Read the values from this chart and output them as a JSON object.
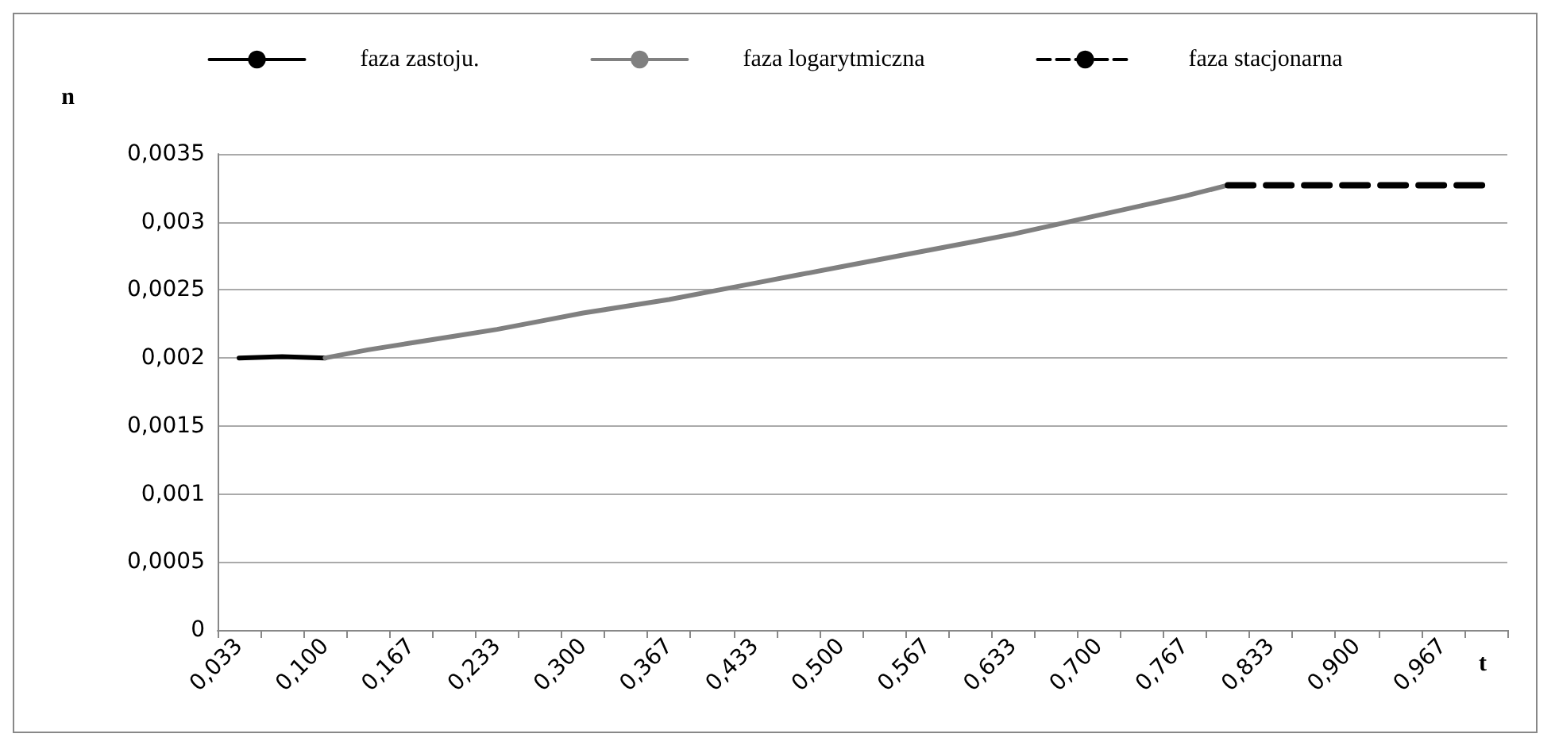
{
  "chart_data": {
    "type": "line",
    "xlabel": "t",
    "ylabel": "n",
    "categories": [
      "0,033",
      null,
      "0,100",
      null,
      "0,167",
      null,
      "0,233",
      null,
      "0,300",
      null,
      "0,367",
      null,
      "0,433",
      null,
      "0,500",
      null,
      "0,567",
      null,
      "0,633",
      null,
      "0,700",
      null,
      "0,767",
      null,
      "0,833",
      null,
      "0,900",
      null,
      "0,967",
      null
    ],
    "series": [
      {
        "name": "faza zastoju.",
        "color": "#000000",
        "line_style": "solid",
        "values": [
          0.002,
          0.00201,
          0.002,
          null,
          null,
          null,
          null,
          null,
          null,
          null,
          null,
          null,
          null,
          null,
          null,
          null,
          null,
          null,
          null,
          null,
          null,
          null,
          null,
          null,
          null,
          null,
          null,
          null,
          null,
          null
        ]
      },
      {
        "name": "faza logarytmiczna",
        "color": "#808080",
        "line_style": "solid",
        "values": [
          null,
          null,
          0.002,
          0.00206,
          0.00211,
          0.00216,
          0.00221,
          0.00227,
          0.00233,
          0.00238,
          0.00243,
          0.00249,
          0.00255,
          0.00261,
          0.00267,
          0.00273,
          0.00279,
          0.00285,
          0.00291,
          0.00298,
          0.00305,
          0.00312,
          0.00319,
          0.00327,
          null,
          null,
          null,
          null,
          null,
          null
        ]
      },
      {
        "name": "faza stacjonarna",
        "color": "#000000",
        "line_style": "dashed",
        "values": [
          null,
          null,
          null,
          null,
          null,
          null,
          null,
          null,
          null,
          null,
          null,
          null,
          null,
          null,
          null,
          null,
          null,
          null,
          null,
          null,
          null,
          null,
          null,
          0.00327,
          0.00327,
          0.00327,
          0.00327,
          0.00327,
          0.00327,
          0.00327
        ]
      }
    ],
    "ylim": [
      0,
      0.0035
    ],
    "yticks": [
      {
        "value": 0,
        "label": "0"
      },
      {
        "value": 0.0005,
        "label": "0,0005"
      },
      {
        "value": 0.001,
        "label": "0,001"
      },
      {
        "value": 0.0015,
        "label": "0,0015"
      },
      {
        "value": 0.002,
        "label": "0,002"
      },
      {
        "value": 0.0025,
        "label": "0,0025"
      },
      {
        "value": 0.003,
        "label": "0,003"
      },
      {
        "value": 0.0035,
        "label": "0,0035"
      }
    ],
    "grid": "y",
    "legend": "top",
    "marker": "none"
  }
}
